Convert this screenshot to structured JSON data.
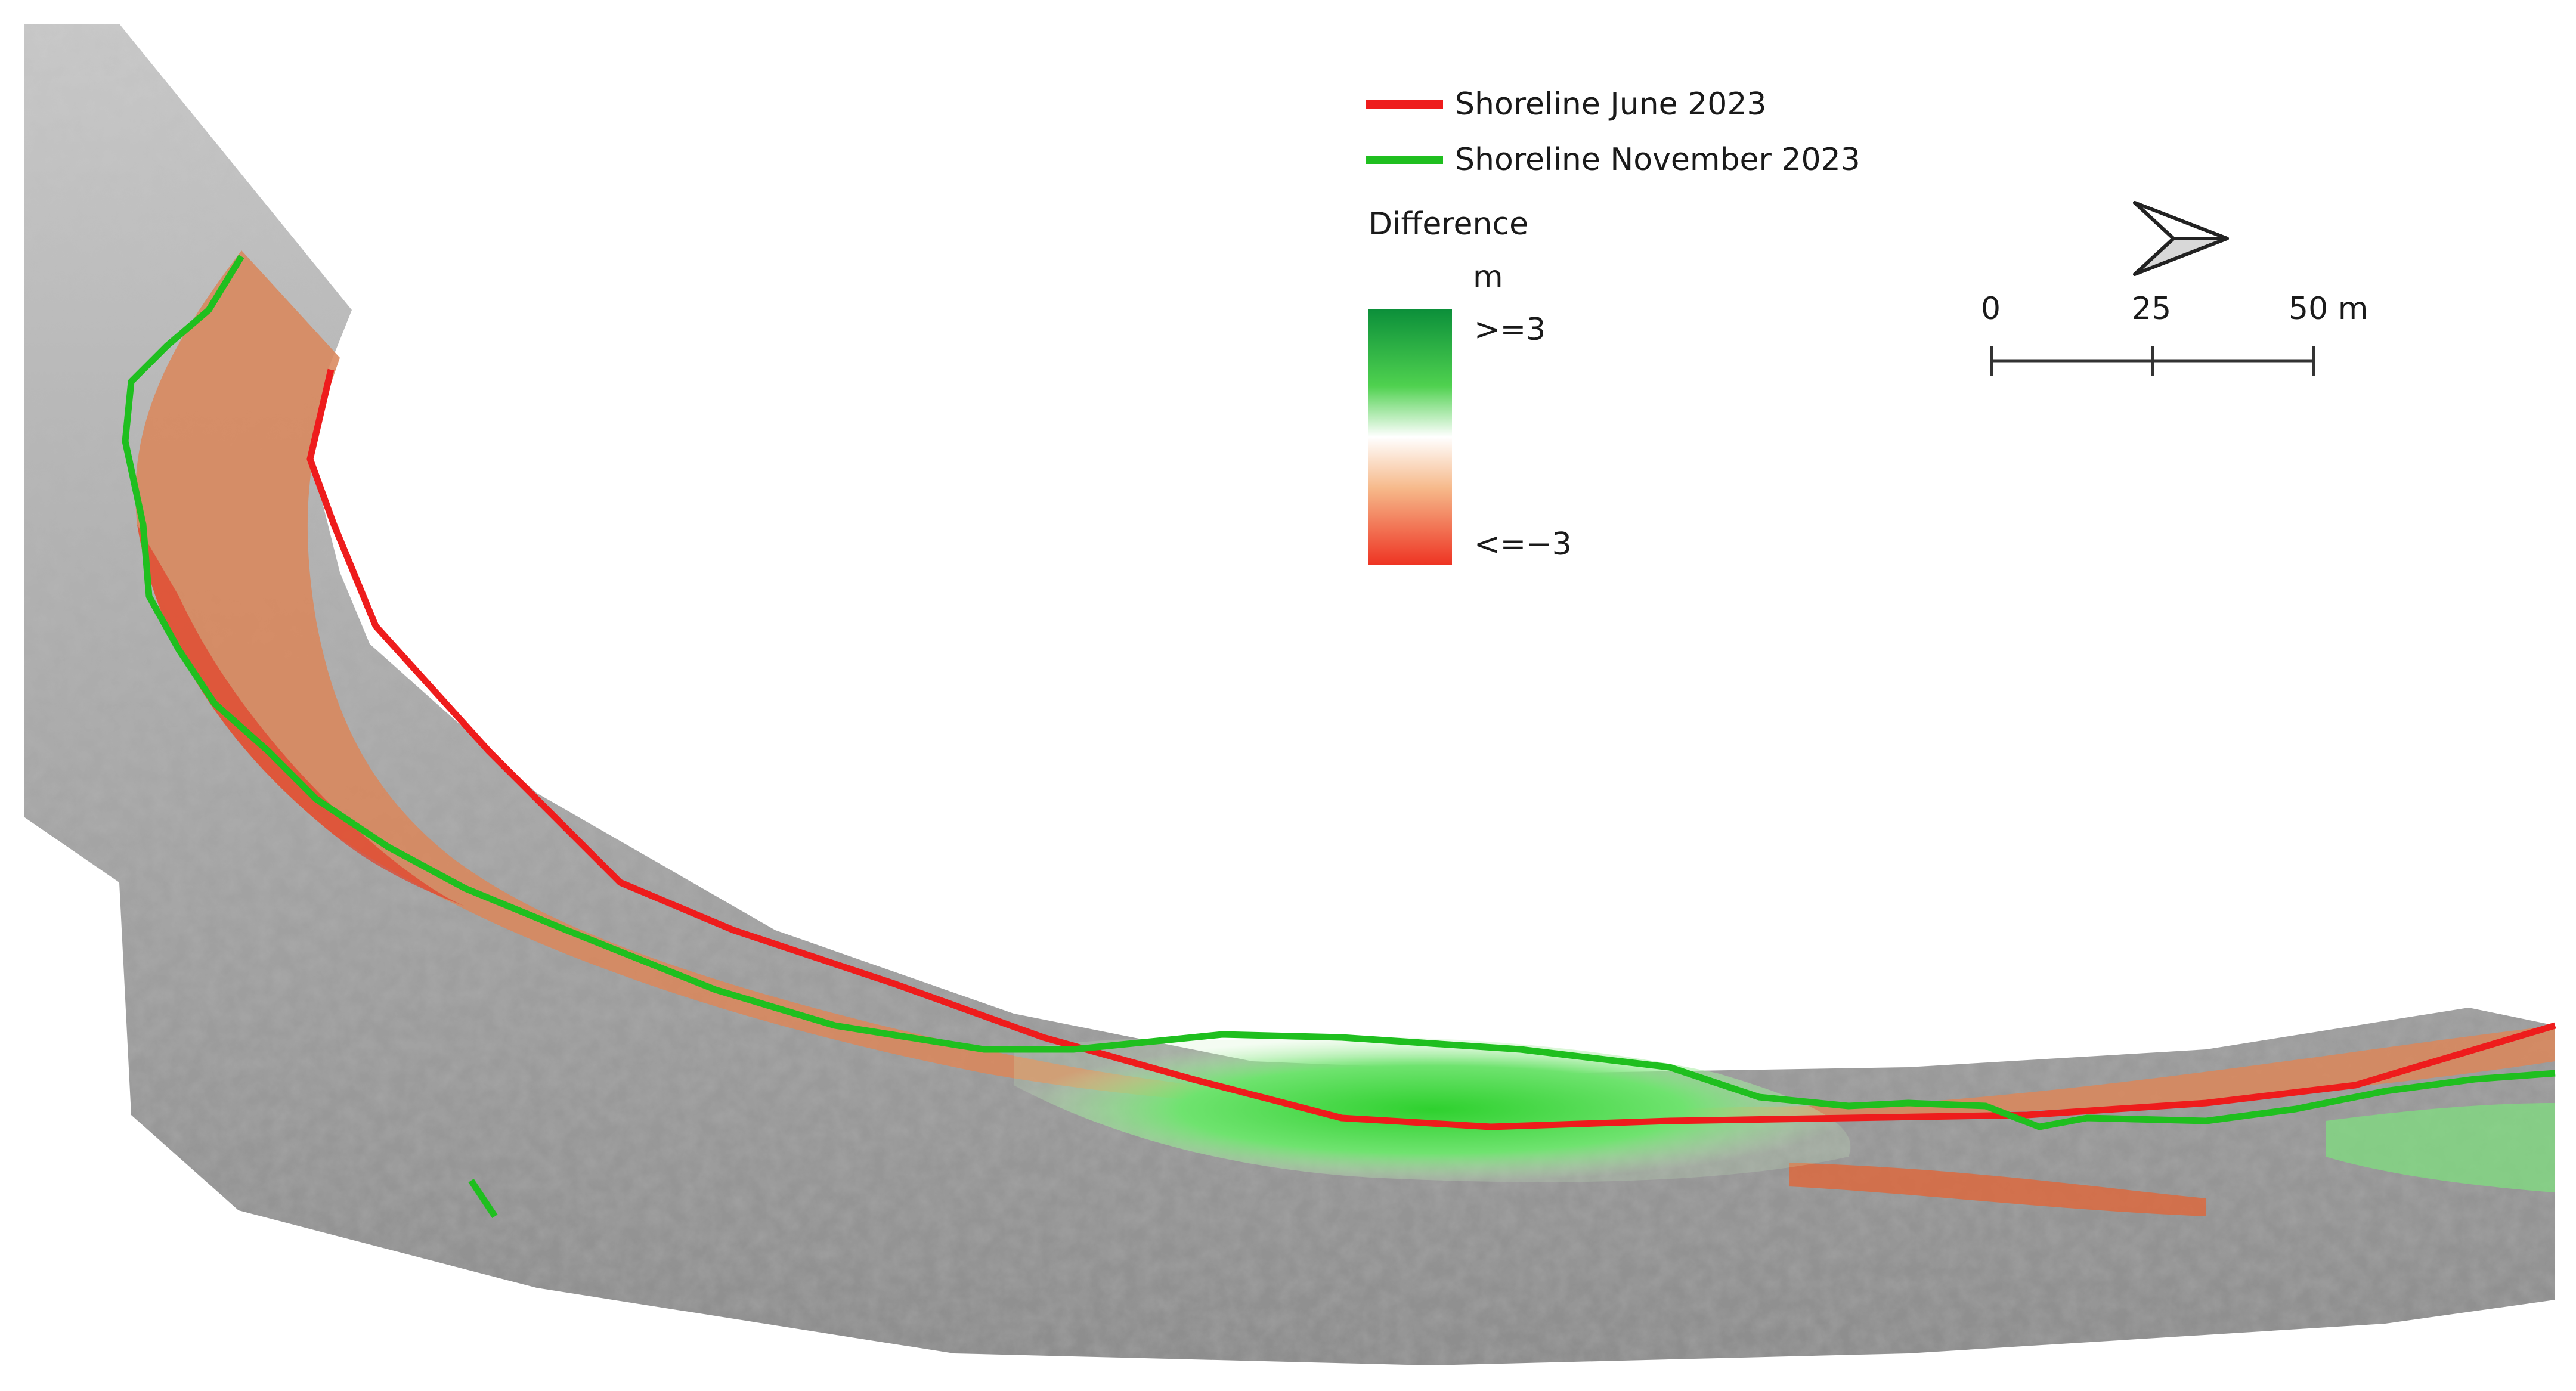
{
  "legend": {
    "lines": [
      {
        "label": "Shoreline June 2023",
        "color": "#ee1c1c"
      },
      {
        "label": "Shoreline November 2023",
        "color": "#1fbf1f"
      }
    ],
    "difference": {
      "title": "Difference",
      "unit": "m",
      "max_label": ">=3",
      "min_label": "<=−3",
      "colors": {
        "high": "#0b8f3a",
        "mid": "#ffffff",
        "low": "#ee3322"
      }
    }
  },
  "scale_bar": {
    "labels": [
      "0",
      "25",
      "50 m"
    ],
    "values_m": [
      0,
      25,
      50
    ]
  },
  "north_arrow": {
    "icon": "north-arrow-icon"
  },
  "colors": {
    "hillshade": "#a9a9a9",
    "erosion": "#d9875c",
    "deposition": "#3ecf3e",
    "june_line": "#ee1c1c",
    "november_line": "#1fbf1f"
  }
}
